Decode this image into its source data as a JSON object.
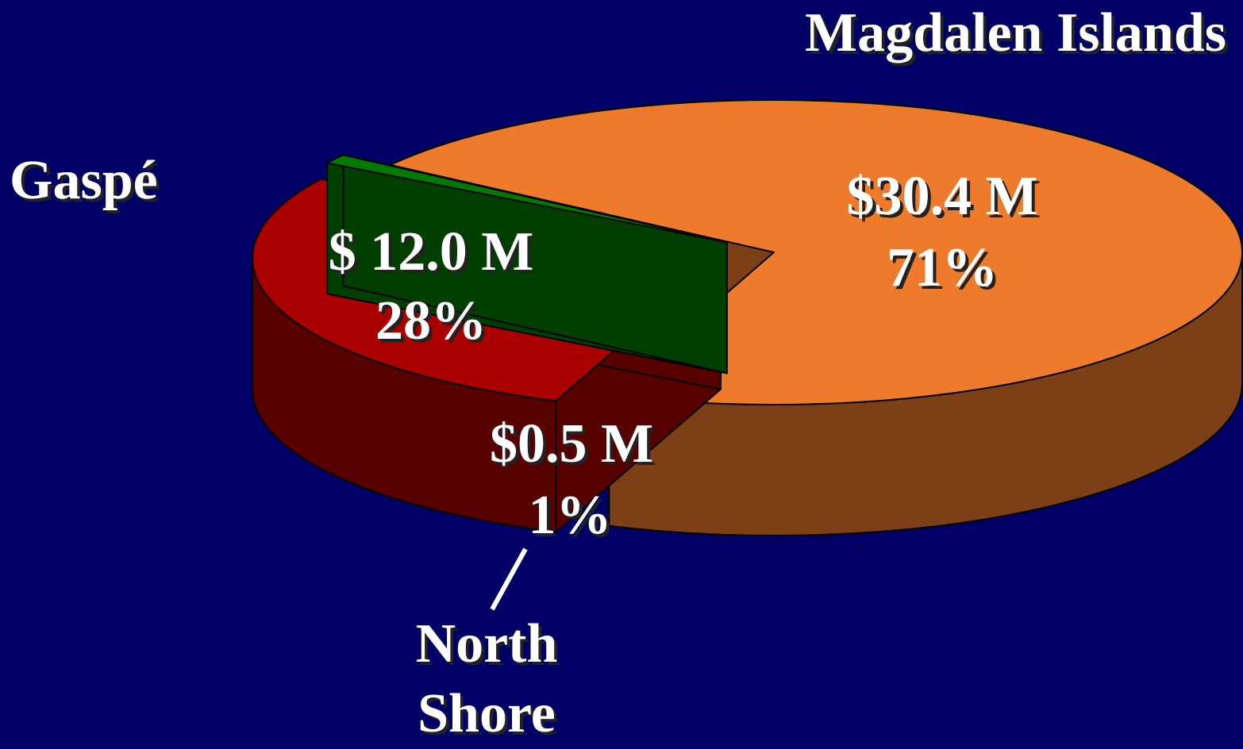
{
  "chart_data": {
    "type": "pie",
    "categories": [
      "Magdalen Islands",
      "Gaspé",
      "North Shore"
    ],
    "values": [
      71,
      28,
      1
    ],
    "value_labels": [
      "71%",
      "28%",
      "1%"
    ],
    "amounts": [
      30.4,
      12.0,
      0.5
    ],
    "amount_labels": [
      "$30.4 M",
      "$ 12.0 M",
      "$0.5 M"
    ],
    "colors": [
      "#ee7a2b",
      "#aa0000",
      "#007a00"
    ]
  }
}
